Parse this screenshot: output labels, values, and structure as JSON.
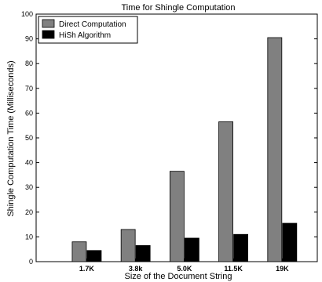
{
  "chart_data": {
    "type": "bar",
    "title": "Time for Shingle Computation",
    "xlabel": "Size of the Document String",
    "ylabel": "Shingle Computation Time (Milliseconds)",
    "categories": [
      "1.7K",
      "3.8k",
      "5.0K",
      "11.5K",
      "19K"
    ],
    "series": [
      {
        "name": "Direct Computation",
        "values": [
          8,
          13,
          36.5,
          56.5,
          90.5
        ],
        "color": "#808080"
      },
      {
        "name": "HiSh Algorithm",
        "values": [
          4.5,
          6.5,
          9.5,
          11,
          15.5
        ],
        "color": "#000000"
      }
    ],
    "ylim": [
      0,
      100
    ],
    "yticks": [
      0,
      10,
      20,
      30,
      40,
      50,
      60,
      70,
      80,
      90,
      100
    ],
    "grid": false,
    "legend": "top-left"
  }
}
